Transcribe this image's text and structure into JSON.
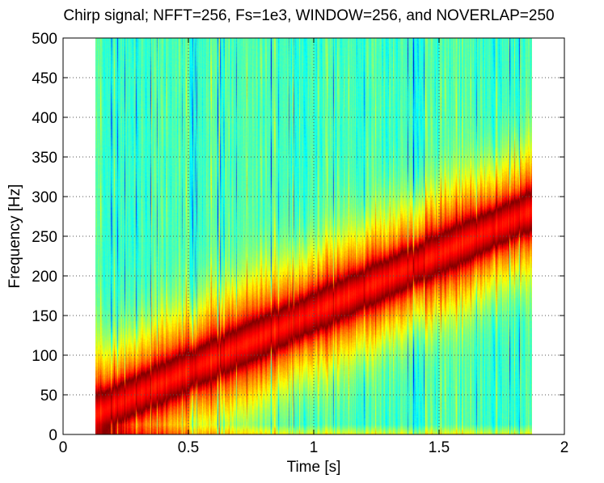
{
  "chart_data": {
    "type": "heatmap",
    "title": "Chirp signal; NFFT=256, Fs=1e3, WINDOW=256, and NOVERLAP=250",
    "xlabel": "Time [s]",
    "ylabel": "Frequency [Hz]",
    "xlim": [
      0,
      2
    ],
    "ylim": [
      0,
      500
    ],
    "xticks": [
      0,
      0.5,
      1,
      1.5,
      2
    ],
    "xtick_labels": [
      "0",
      "0.5",
      "1",
      "1.5",
      "2"
    ],
    "yticks": [
      0,
      50,
      100,
      150,
      200,
      250,
      300,
      350,
      400,
      450,
      500
    ],
    "ytick_labels": [
      "0",
      "50",
      "100",
      "150",
      "200",
      "250",
      "300",
      "350",
      "400",
      "450",
      "500"
    ],
    "grid": true,
    "colormap": "jet",
    "data_extent": {
      "t_start": 0.128,
      "t_end": 1.872,
      "f_start": 0,
      "f_end": 500
    },
    "ridge": {
      "description": "linear chirp",
      "t": [
        0.128,
        1.872
      ],
      "f": [
        25,
        282
      ],
      "width_hz": 28
    },
    "colors": {
      "ridge": "#8b0000",
      "background": "#3fe0c0"
    }
  }
}
